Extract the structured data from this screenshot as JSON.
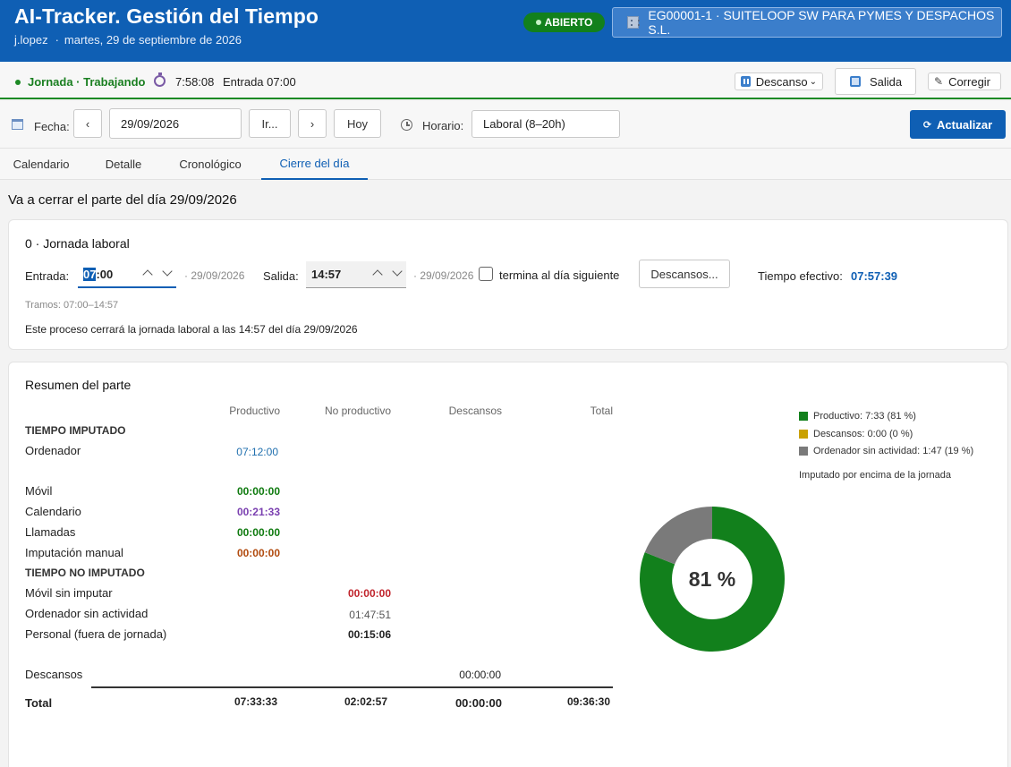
{
  "header": {
    "title": "AI-Tracker. Gestión del Tiempo",
    "user": "j.lopez",
    "separator": "·",
    "date": "martes, 29 de septiembre de 2026",
    "status": "ABIERTO",
    "company": "EG00001-1 · SUITELOOP SW PARA PYMES Y DESPACHOS S.L."
  },
  "statusbar": {
    "label": "Jornada · Trabajando",
    "timer": "7:58:08",
    "entry": "Entrada 07:00",
    "descanso": "Descanso",
    "salida": "Salida",
    "corregir": "Corregir"
  },
  "toolbar": {
    "fecha_label": "Fecha:",
    "prev": "‹",
    "date_value": "29/09/2026",
    "go": "Ir...",
    "next": "›",
    "today": "Hoy",
    "horario_label": "Horario:",
    "horario_value": "Laboral (8–20h)",
    "refresh": "Actualizar"
  },
  "tabs": [
    "Calendario",
    "Detalle",
    "Cronológico",
    "Cierre del día"
  ],
  "section_title": "Va a cerrar el parte del día 29/09/2026",
  "jornada": {
    "title": "0 · Jornada laboral",
    "entrada_label": "Entrada:",
    "entrada_sel": "07",
    "entrada_rest": ":00",
    "entrada_date": "· 29/09/2026",
    "salida_label": "Salida:",
    "salida_value": "14:57",
    "salida_date": "· 29/09/2026",
    "next_day": "termina al día siguiente",
    "descansos_btn": "Descansos...",
    "efectivo_label": "Tiempo efectivo:",
    "efectivo_value": "07:57:39",
    "tramos": "Tramos: 07:00–14:57",
    "note": "Este proceso cerrará la jornada laboral a las 14:57 del día 29/09/2026"
  },
  "resumen": {
    "title": "Resumen del parte",
    "columns": [
      "Productivo",
      "No productivo",
      "Descansos",
      "Total"
    ],
    "imputado_label": "TIEMPO IMPUTADO",
    "no_imputado_label": "TIEMPO NO IMPUTADO",
    "rows": {
      "ordenador": {
        "label": "Ordenador",
        "value": "07:12:00"
      },
      "movil": {
        "label": "Móvil",
        "value": "00:00:00"
      },
      "calendario": {
        "label": "Calendario",
        "value": "00:21:33"
      },
      "llamadas": {
        "label": "Llamadas",
        "value": "00:00:00"
      },
      "manual": {
        "label": "Imputación manual",
        "value": "00:00:00"
      },
      "movil_sin": {
        "label": "Móvil sin imputar",
        "value": "00:00:00"
      },
      "ord_sin": {
        "label": "Ordenador sin actividad",
        "value": "01:47:51"
      },
      "personal": {
        "label": "Personal (fuera de jornada)",
        "value": "00:15:06"
      },
      "descansos": {
        "label": "Descansos",
        "value": "00:00:00"
      }
    },
    "total": {
      "label": "Total",
      "productivo": "07:33:33",
      "no_productivo": "02:02:57",
      "descansos": "00:00:00",
      "total": "09:36:30"
    },
    "colors": {
      "blue": "#1f6fae",
      "green": "#0e7a0e",
      "purple": "#7a3fb0",
      "orange": "#b14a0e",
      "red": "#c0232b",
      "gray": "#555555"
    }
  },
  "chart_data": {
    "type": "pie",
    "categories": [
      "Productivo: 7:33 (81 %)",
      "Descansos: 0:00 (0 %)",
      "Ordenador sin actividad: 1:47 (19 %)"
    ],
    "values": [
      81,
      0,
      19
    ],
    "colors": [
      "#12801c",
      "#c9a100",
      "#7a7a7a"
    ],
    "center_label": "81 %",
    "note": "Imputado por encima de la jornada",
    "legend": "top-right"
  }
}
